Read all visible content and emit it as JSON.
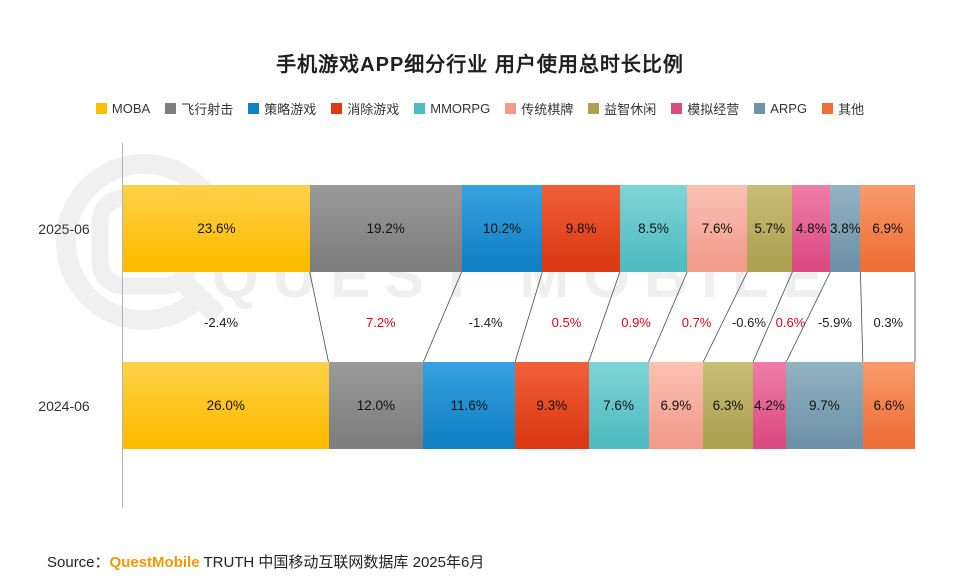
{
  "title": "手机游戏APP细分行业 用户使用总时长比例",
  "legend": [
    {
      "label": "MOBA",
      "color": "#FDBC00",
      "light": "#FFD24A"
    },
    {
      "label": "飞行射击",
      "color": "#7E7E7E",
      "light": "#9A9A9A"
    },
    {
      "label": "策略游戏",
      "color": "#1180C5",
      "light": "#35A3DF"
    },
    {
      "label": "消除游戏",
      "color": "#DC3914",
      "light": "#F0603A"
    },
    {
      "label": "MMORPG",
      "color": "#4FBDC1",
      "light": "#7FD4D6"
    },
    {
      "label": "传统棋牌",
      "color": "#F29C8C",
      "light": "#FBC2B4"
    },
    {
      "label": "益智休闲",
      "color": "#ACA150",
      "light": "#C9BD78"
    },
    {
      "label": "模拟经营",
      "color": "#DA4C81",
      "light": "#EF7FA8"
    },
    {
      "label": "ARPG",
      "color": "#6E93A8",
      "light": "#93B3C4"
    },
    {
      "label": "其他",
      "color": "#EF6F38",
      "light": "#F99B6C"
    }
  ],
  "chart_data": {
    "type": "bar",
    "orientation": "horizontal-stacked",
    "title": "手机游戏APP细分行业 用户使用总时长比例",
    "categories": [
      "MOBA",
      "飞行射击",
      "策略游戏",
      "消除游戏",
      "MMORPG",
      "传统棋牌",
      "益智休闲",
      "模拟经营",
      "ARPG",
      "其他"
    ],
    "series": [
      {
        "name": "2025-06",
        "values": [
          23.6,
          19.2,
          10.2,
          9.8,
          8.5,
          7.6,
          5.7,
          4.8,
          3.8,
          6.9
        ]
      },
      {
        "name": "2024-06",
        "values": [
          26.0,
          12.0,
          11.6,
          9.3,
          7.6,
          6.9,
          6.3,
          4.2,
          9.7,
          6.6
        ]
      }
    ],
    "changes": {
      "values": [
        -2.4,
        7.2,
        -1.4,
        0.5,
        0.9,
        0.7,
        -0.6,
        0.6,
        -5.9,
        0.3
      ],
      "labels": [
        "-2.4%",
        "7.2%",
        "-1.4%",
        "0.5%",
        "0.9%",
        "0.7%",
        "-0.6%",
        "0.6%",
        "-5.9%",
        "0.3%"
      ],
      "colors": [
        "#1a1a1a",
        "#E60012",
        "#1a1a1a",
        "#E60012",
        "#E60012",
        "#E60012",
        "#1a1a1a",
        "#E60012",
        "#1a1a1a",
        "#1a1a1a"
      ]
    },
    "legend_position": "top",
    "grid": false
  },
  "watermark": {
    "text": "QUEST MOBILE"
  },
  "source": {
    "prefix": "Source：",
    "brand": "QuestMobile",
    "brand_color": "#F39800",
    "suffix": " TRUTH 中国移动互联网数据库 2025年6月"
  }
}
